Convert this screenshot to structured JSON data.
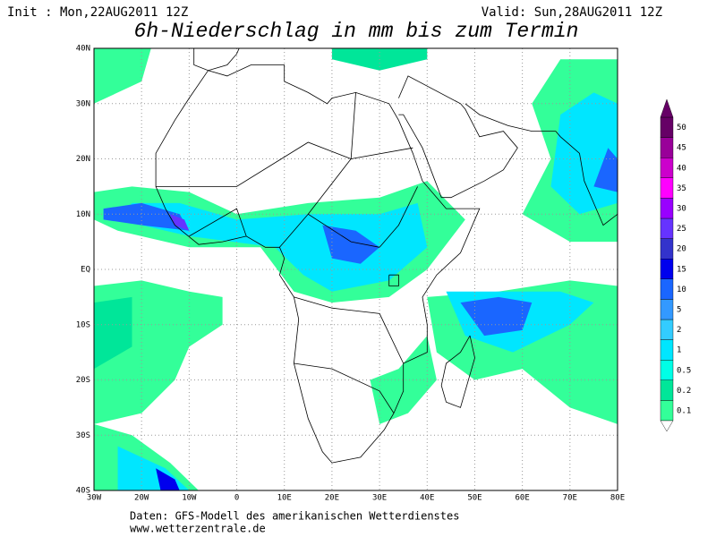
{
  "header": {
    "init": "Init : Mon,22AUG2011 12Z",
    "valid": "Valid: Sun,28AUG2011 12Z",
    "title": "6h-Niederschlag in mm bis zum Termin"
  },
  "map": {
    "lat_labels": [
      "40N",
      "30N",
      "20N",
      "10N",
      "EQ",
      "10S",
      "20S",
      "30S",
      "40S"
    ],
    "lon_labels": [
      "30W",
      "20W",
      "10W",
      "0",
      "10E",
      "20E",
      "30E",
      "40E",
      "50E",
      "60E",
      "70E",
      "80E"
    ]
  },
  "legend": {
    "levels": [
      {
        "label": "0.1",
        "color": "#33ff99"
      },
      {
        "label": "0.2",
        "color": "#00e699"
      },
      {
        "label": "0.5",
        "color": "#00ffe6"
      },
      {
        "label": "1",
        "color": "#00e6ff"
      },
      {
        "label": "2",
        "color": "#33ccff"
      },
      {
        "label": "5",
        "color": "#3399ff"
      },
      {
        "label": "10",
        "color": "#1a66ff"
      },
      {
        "label": "15",
        "color": "#0000ee"
      },
      {
        "label": "20",
        "color": "#3333cc"
      },
      {
        "label": "25",
        "color": "#6633ff"
      },
      {
        "label": "30",
        "color": "#9900ff"
      },
      {
        "label": "35",
        "color": "#ff00ff"
      },
      {
        "label": "40",
        "color": "#cc00cc"
      },
      {
        "label": "45",
        "color": "#990099"
      },
      {
        "label": "50",
        "color": "#660066"
      }
    ]
  },
  "footer": {
    "source": "Daten: GFS-Modell des amerikanischen Wetterdienstes",
    "url": "www.wetterzentrale.de"
  }
}
